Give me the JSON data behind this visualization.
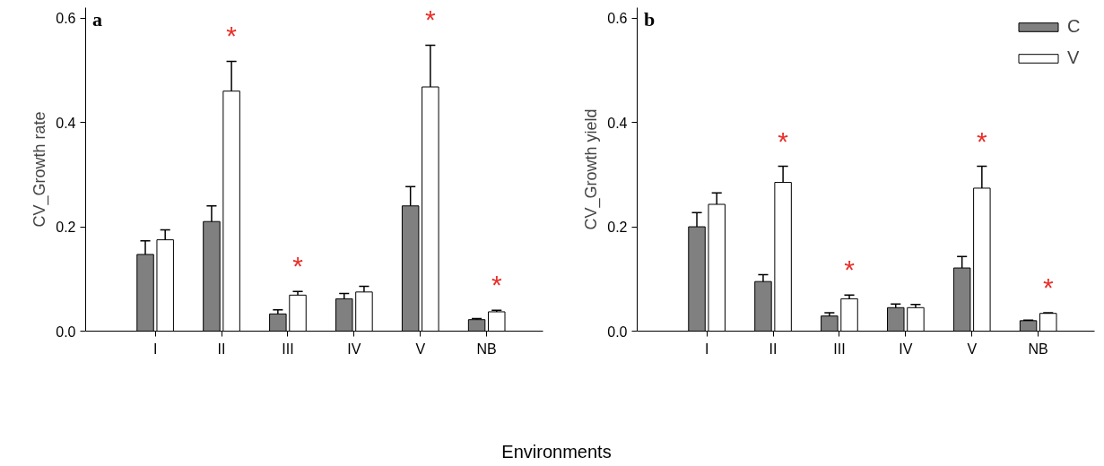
{
  "chart_data": [
    {
      "type": "bar",
      "title": "a",
      "xlabel": "Environments",
      "ylabel": "CV_Growth rate",
      "categories": [
        "I",
        "II",
        "III",
        "IV",
        "V",
        "NB"
      ],
      "ylim": [
        0,
        0.62
      ],
      "yticks": [
        {
          "value": 0,
          "label": "0.0"
        },
        {
          "value": 0.2,
          "label": "0.2"
        },
        {
          "value": 0.4,
          "label": "0.4"
        },
        {
          "value": 0.6,
          "label": "0.6"
        }
      ],
      "grid": false,
      "series": [
        {
          "color": "#808080",
          "values": [
            0.147,
            0.21,
            0.033,
            0.062,
            0.24,
            0.022
          ],
          "errors": [
            [
              0.147,
              0.173
            ],
            [
              0.21,
              0.24
            ],
            [
              0.033,
              0.041
            ],
            [
              0.062,
              0.072
            ],
            [
              0.24,
              0.277
            ],
            [
              0.022,
              0.024
            ]
          ]
        },
        {
          "color": "#ffffff",
          "values": [
            0.175,
            0.46,
            0.069,
            0.075,
            0.468,
            0.037
          ],
          "errors": [
            [
              0.175,
              0.194
            ],
            [
              0.46,
              0.517
            ],
            [
              0.069,
              0.076
            ],
            [
              0.075,
              0.086
            ],
            [
              0.468,
              0.548
            ],
            [
              0.037,
              0.04
            ]
          ],
          "value_labels": [
            null,
            "*",
            "*",
            null,
            "*",
            "*"
          ]
        }
      ]
    },
    {
      "type": "bar",
      "title": "b",
      "ylabel": "CV_Growth yield",
      "categories": [
        "I",
        "II",
        "III",
        "IV",
        "V",
        "NB"
      ],
      "ylim": [
        0,
        0.62
      ],
      "yticks": [
        {
          "value": 0,
          "label": "0.0"
        },
        {
          "value": 0.2,
          "label": "0.2"
        },
        {
          "value": 0.4,
          "label": "0.4"
        },
        {
          "value": 0.6,
          "label": "0.6"
        }
      ],
      "grid": false,
      "legend": "top right",
      "series": [
        {
          "name": "C",
          "color": "#808080",
          "values": [
            0.2,
            0.095,
            0.029,
            0.045,
            0.121,
            0.02
          ],
          "errors": [
            [
              0.2,
              0.227
            ],
            [
              0.095,
              0.108
            ],
            [
              0.029,
              0.035
            ],
            [
              0.045,
              0.052
            ],
            [
              0.121,
              0.143
            ],
            [
              0.02,
              0.021
            ]
          ]
        },
        {
          "name": "V",
          "color": "#ffffff",
          "values": [
            0.243,
            0.285,
            0.062,
            0.045,
            0.274,
            0.034
          ],
          "errors": [
            [
              0.243,
              0.265
            ],
            [
              0.285,
              0.316
            ],
            [
              0.062,
              0.069
            ],
            [
              0.045,
              0.051
            ],
            [
              0.274,
              0.316
            ],
            [
              0.034,
              0.035
            ]
          ],
          "value_labels": [
            null,
            "*",
            "*",
            null,
            "*",
            "*"
          ]
        }
      ]
    }
  ]
}
